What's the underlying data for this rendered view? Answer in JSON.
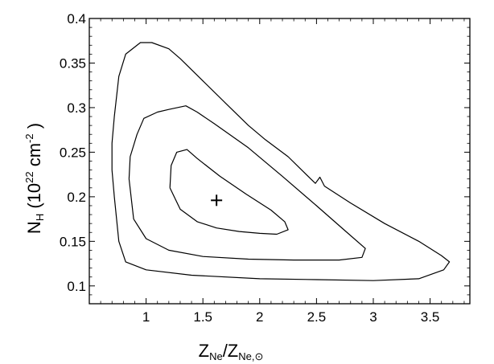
{
  "chart_data": {
    "type": "line",
    "title": "",
    "xlabel": {
      "main": "Z",
      "sub1": "Ne",
      "sep": "/Z",
      "sub2": "Ne,⊙"
    },
    "ylabel": {
      "main": "N",
      "sub": "H",
      "open": " (10",
      "exp1": "22",
      "unit": " cm",
      "exp2": "-2",
      "close": " )"
    },
    "xlim": [
      0.5,
      3.85
    ],
    "ylim": [
      0.08,
      0.4
    ],
    "xticks": [
      1,
      1.5,
      2,
      2.5,
      3,
      3.5
    ],
    "yticks": [
      0.1,
      0.15,
      0.2,
      0.25,
      0.3,
      0.35,
      0.4
    ],
    "xtick_labels": [
      "1",
      "1.5",
      "2",
      "2.5",
      "3",
      "3.5"
    ],
    "ytick_labels": [
      "0.1",
      "0.15",
      "0.2",
      "0.25",
      "0.3",
      "0.35",
      "0.4"
    ],
    "grid": false,
    "best_fit": {
      "x": 1.62,
      "y": 0.196
    },
    "series": [
      {
        "values": [
          [
            1.21,
            0.21
          ],
          [
            1.3,
            0.186
          ],
          [
            1.45,
            0.172
          ],
          [
            1.62,
            0.165
          ],
          [
            1.82,
            0.161
          ],
          [
            2.0,
            0.159
          ],
          [
            2.15,
            0.158
          ],
          [
            2.25,
            0.163
          ],
          [
            2.22,
            0.172
          ],
          [
            2.1,
            0.185
          ],
          [
            1.88,
            0.203
          ],
          [
            1.65,
            0.223
          ],
          [
            1.45,
            0.243
          ],
          [
            1.36,
            0.253
          ],
          [
            1.27,
            0.25
          ],
          [
            1.22,
            0.235
          ],
          [
            1.21,
            0.21
          ]
        ]
      },
      {
        "values": [
          [
            0.85,
            0.22
          ],
          [
            0.89,
            0.175
          ],
          [
            1.0,
            0.153
          ],
          [
            1.2,
            0.14
          ],
          [
            1.5,
            0.133
          ],
          [
            1.9,
            0.13
          ],
          [
            2.3,
            0.129
          ],
          [
            2.7,
            0.129
          ],
          [
            2.9,
            0.132
          ],
          [
            2.93,
            0.142
          ],
          [
            2.75,
            0.162
          ],
          [
            2.5,
            0.19
          ],
          [
            2.2,
            0.223
          ],
          [
            1.9,
            0.255
          ],
          [
            1.6,
            0.282
          ],
          [
            1.45,
            0.295
          ],
          [
            1.35,
            0.302
          ],
          [
            1.2,
            0.298
          ],
          [
            1.1,
            0.295
          ],
          [
            0.98,
            0.288
          ],
          [
            0.92,
            0.27
          ],
          [
            0.86,
            0.245
          ],
          [
            0.85,
            0.22
          ]
        ]
      },
      {
        "values": [
          [
            0.7,
            0.23
          ],
          [
            0.72,
            0.2
          ],
          [
            0.76,
            0.15
          ],
          [
            0.82,
            0.127
          ],
          [
            1.0,
            0.118
          ],
          [
            1.4,
            0.112
          ],
          [
            2.0,
            0.108
          ],
          [
            2.5,
            0.107
          ],
          [
            3.0,
            0.106
          ],
          [
            3.4,
            0.108
          ],
          [
            3.62,
            0.118
          ],
          [
            3.67,
            0.127
          ],
          [
            3.6,
            0.134
          ],
          [
            3.4,
            0.15
          ],
          [
            3.1,
            0.17
          ],
          [
            2.8,
            0.193
          ],
          [
            2.57,
            0.212
          ],
          [
            2.53,
            0.222
          ],
          [
            2.49,
            0.215
          ],
          [
            2.45,
            0.22
          ],
          [
            2.25,
            0.245
          ],
          [
            2.05,
            0.264
          ],
          [
            1.9,
            0.28
          ],
          [
            1.7,
            0.305
          ],
          [
            1.5,
            0.33
          ],
          [
            1.3,
            0.355
          ],
          [
            1.2,
            0.366
          ],
          [
            1.05,
            0.373
          ],
          [
            0.95,
            0.373
          ],
          [
            0.82,
            0.36
          ],
          [
            0.76,
            0.335
          ],
          [
            0.72,
            0.29
          ],
          [
            0.7,
            0.26
          ],
          [
            0.7,
            0.23
          ]
        ]
      }
    ]
  }
}
